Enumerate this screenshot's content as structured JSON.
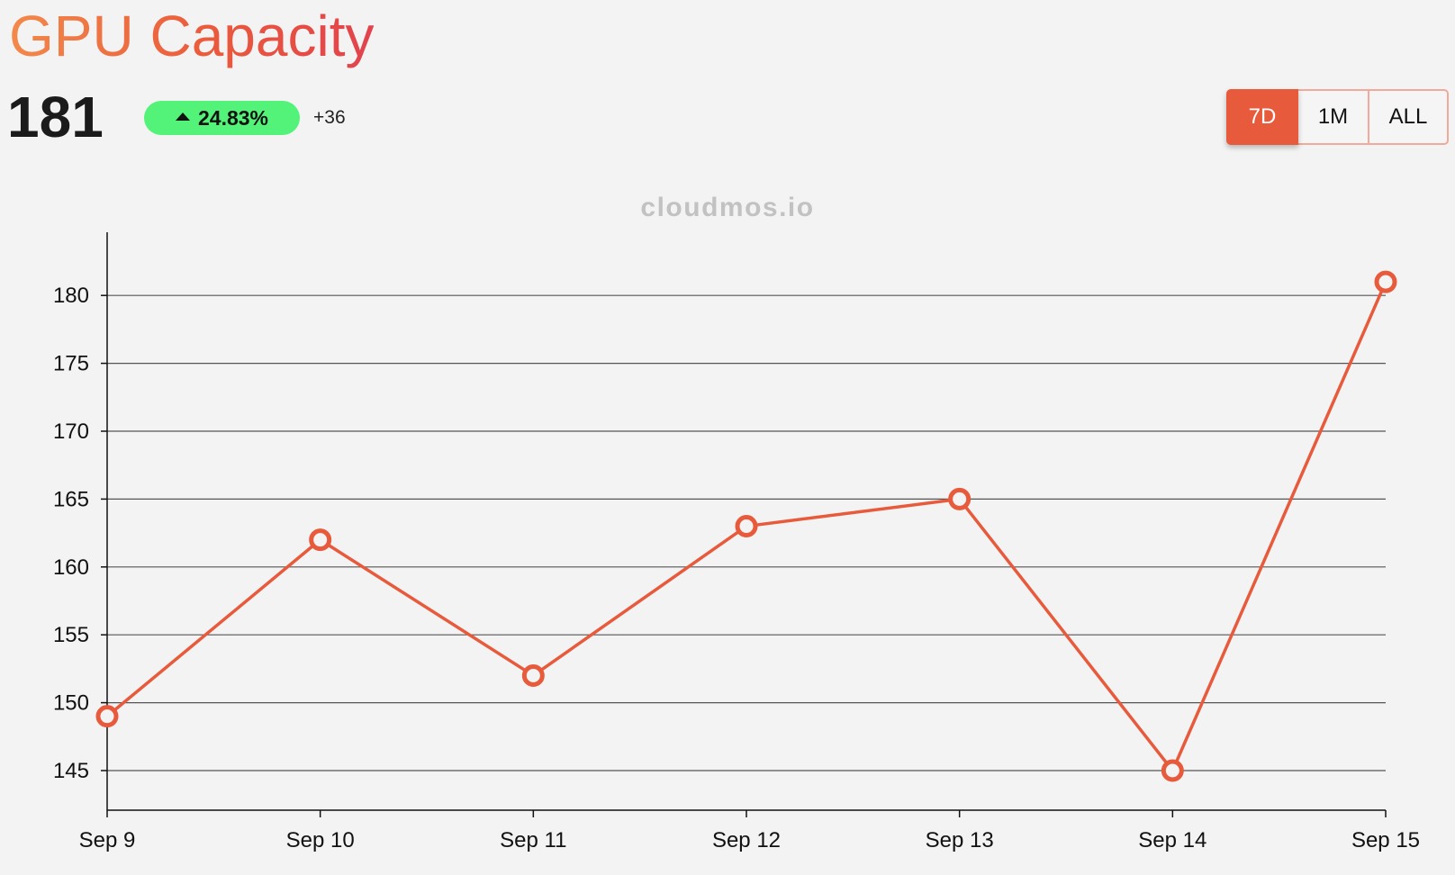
{
  "header": {
    "title": "GPU Capacity",
    "value": "181",
    "change_percent": "24.83%",
    "change_abs": "+36"
  },
  "range": {
    "options": [
      "7D",
      "1M",
      "ALL"
    ],
    "selected": "7D"
  },
  "watermark": "cloudmos.io",
  "colors": {
    "accent": "#e85a3c",
    "badge": "#53f37a",
    "grid": "#555555",
    "background": "#f3f3f3"
  },
  "chart_data": {
    "type": "line",
    "title": "",
    "xlabel": "",
    "ylabel": "",
    "categories": [
      "Sep 9",
      "Sep 10",
      "Sep 11",
      "Sep 12",
      "Sep 13",
      "Sep 14",
      "Sep 15"
    ],
    "series": [
      {
        "values": [
          149,
          162,
          152,
          163,
          165,
          145,
          181
        ]
      }
    ],
    "yticks": [
      145,
      150,
      155,
      160,
      165,
      170,
      175,
      180
    ],
    "ylim": [
      142,
      185
    ],
    "grid": true,
    "legend": false
  }
}
